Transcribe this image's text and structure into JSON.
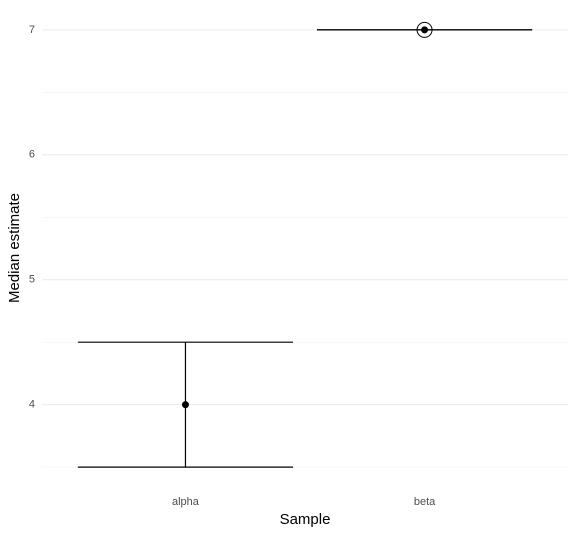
{
  "chart_data": {
    "type": "errorbar",
    "x_label": "Sample",
    "y_label": "Median estimate",
    "categories": [
      "alpha",
      "beta"
    ],
    "values": [
      4,
      7
    ],
    "lower": [
      3.5,
      7
    ],
    "upper": [
      4.5,
      7
    ],
    "highlighted": [
      false,
      true
    ],
    "color": "#000000",
    "ylim": [
      3.325,
      7.175
    ],
    "yticks": [
      4,
      5,
      6,
      7
    ],
    "yminorticks": [
      3.5,
      4.5,
      5.5,
      6.5
    ],
    "grid": true
  }
}
